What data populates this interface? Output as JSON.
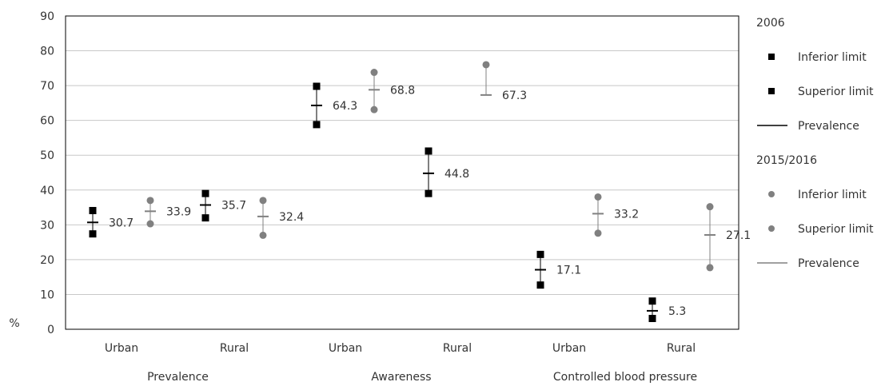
{
  "chart_data": {
    "type": "scatter",
    "ylabel": "%",
    "ylim": [
      0,
      90
    ],
    "yticks": [
      0,
      10,
      20,
      30,
      40,
      50,
      60,
      70,
      80,
      90
    ],
    "grid": "horizontal",
    "legend_position": "right",
    "groups": [
      "Prevalence",
      "Awareness",
      "Controlled blood pressure"
    ],
    "categories": [
      "Urban",
      "Rural",
      "Urban",
      "Rural",
      "Urban",
      "Rural"
    ],
    "series": [
      {
        "name": "2006",
        "color": "#000000",
        "marker": "square",
        "inferior": [
          27.4,
          32.0,
          58.8,
          39.0,
          12.7,
          3.1
        ],
        "superior": [
          34.1,
          39.0,
          69.8,
          51.2,
          21.5,
          8.1
        ],
        "prevalence": [
          30.7,
          35.7,
          64.3,
          44.8,
          17.1,
          5.3
        ]
      },
      {
        "name": "2015/2016",
        "color": "#808080",
        "marker": "circle",
        "inferior": [
          30.3,
          27.0,
          63.1,
          null,
          27.6,
          17.7
        ],
        "superior": [
          37.0,
          37.0,
          73.8,
          76.0,
          38.0,
          35.2
        ],
        "prevalence": [
          33.9,
          32.4,
          68.8,
          67.3,
          33.2,
          27.1
        ]
      }
    ],
    "legend": [
      {
        "title": "2006",
        "items": [
          "Inferior limit",
          "Superior limit",
          "Prevalence"
        ]
      },
      {
        "title": "2015/2016",
        "items": [
          "Inferior limit",
          "Superior limit",
          "Prevalence"
        ]
      }
    ]
  }
}
